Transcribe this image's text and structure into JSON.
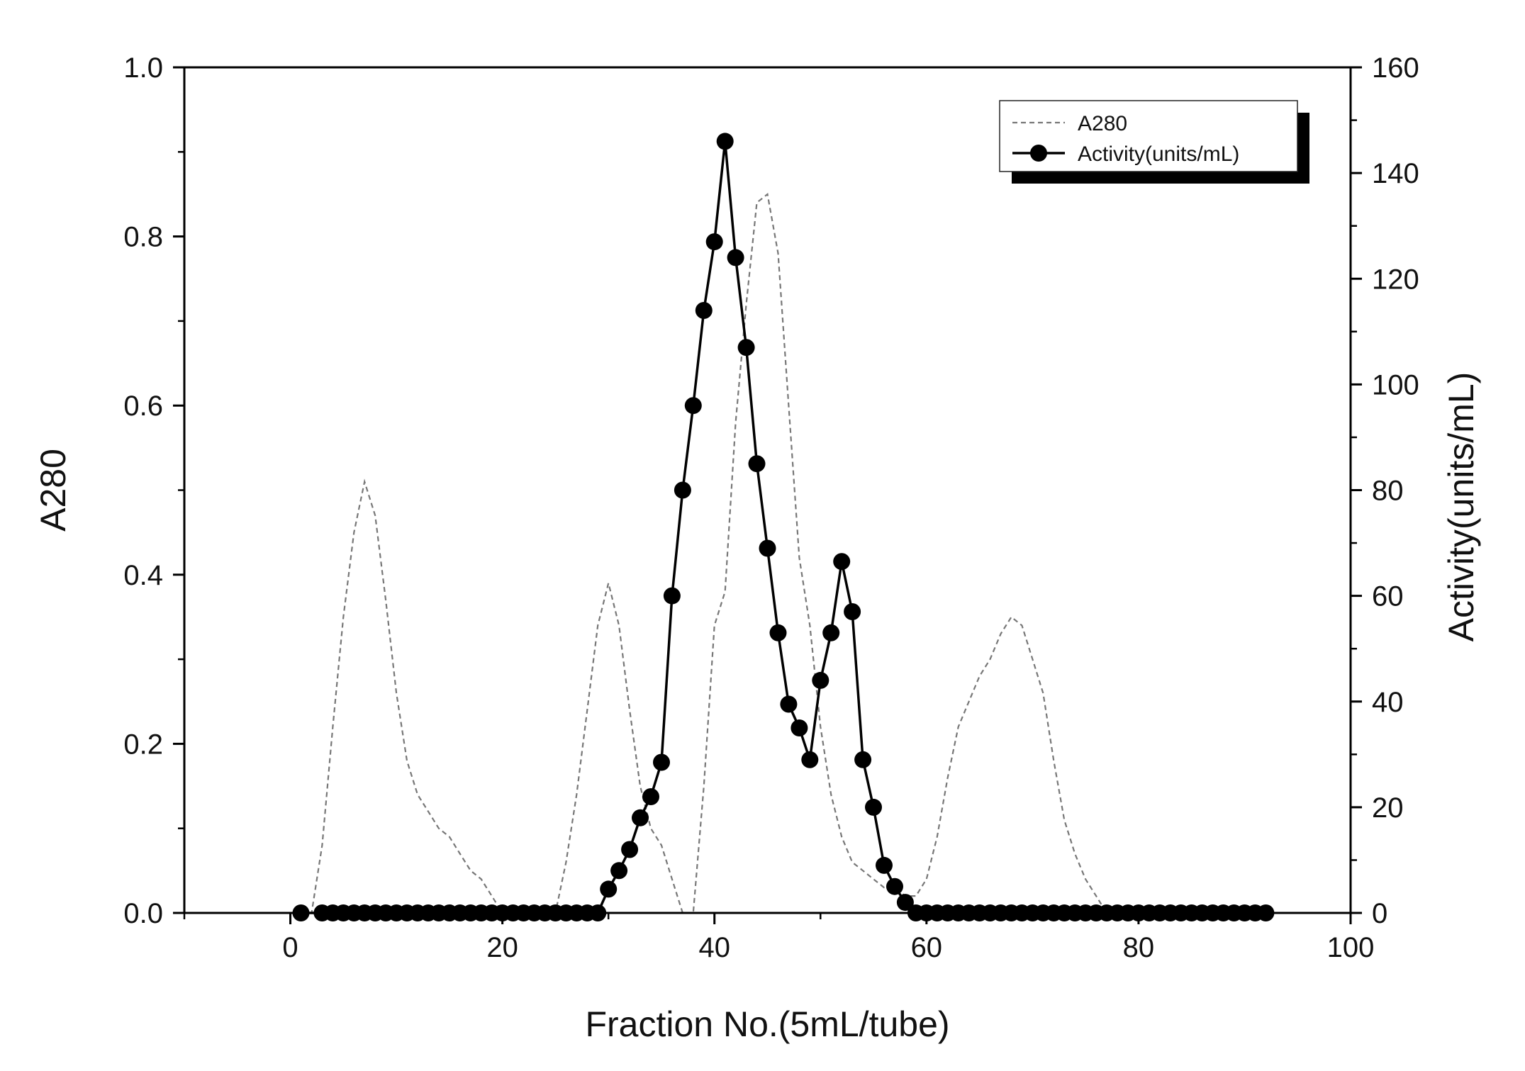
{
  "chart_data": {
    "type": "line",
    "title": "",
    "xlabel": "Fraction No.(5mL/tube)",
    "ylabel_left": "A280",
    "ylabel_right": "Activity(units/mL)",
    "xlim": [
      -10,
      100
    ],
    "ylim_left": [
      0,
      1.0
    ],
    "ylim_right": [
      0,
      160
    ],
    "x_ticks": [
      0,
      20,
      40,
      60,
      80,
      100
    ],
    "x_tick_labels": [
      "0",
      "20",
      "40",
      "60",
      "80",
      "100"
    ],
    "y_left_ticks": [
      0,
      0.2,
      0.4,
      0.6,
      0.8,
      1.0
    ],
    "y_left_tick_labels": [
      "0.0",
      "0.2",
      "0.4",
      "0.6",
      "0.8",
      "1.0"
    ],
    "y_right_ticks": [
      0,
      20,
      40,
      60,
      80,
      100,
      120,
      140,
      160
    ],
    "y_right_tick_labels": [
      "0",
      "20",
      "40",
      "60",
      "80",
      "100",
      "120",
      "140",
      "160"
    ],
    "grid": false,
    "legend_position": "top-right",
    "series": [
      {
        "name": "A280",
        "axis": "left",
        "style": "dashed",
        "color": "#777777",
        "x": [
          1,
          2,
          3,
          4,
          5,
          6,
          7,
          8,
          9,
          10,
          11,
          12,
          13,
          14,
          15,
          16,
          17,
          18,
          19,
          20,
          21,
          22,
          23,
          24,
          25,
          26,
          27,
          28,
          29,
          30,
          31,
          32,
          33,
          34,
          35,
          36,
          37,
          38,
          39,
          40,
          41,
          42,
          43,
          44,
          45,
          46,
          47,
          48,
          49,
          50,
          51,
          52,
          53,
          54,
          55,
          56,
          57,
          58,
          59,
          60,
          61,
          62,
          63,
          64,
          65,
          66,
          67,
          68,
          69,
          70,
          71,
          72,
          73,
          74,
          75,
          76,
          77,
          78,
          79,
          80,
          85,
          90,
          92
        ],
        "y": [
          0.0,
          0.0,
          0.08,
          0.22,
          0.35,
          0.45,
          0.51,
          0.47,
          0.37,
          0.26,
          0.18,
          0.14,
          0.12,
          0.1,
          0.09,
          0.07,
          0.05,
          0.04,
          0.02,
          0.0,
          0.0,
          0.0,
          0.0,
          0.0,
          0.0,
          0.06,
          0.14,
          0.24,
          0.34,
          0.39,
          0.34,
          0.24,
          0.15,
          0.1,
          0.08,
          0.04,
          0.0,
          0.0,
          0.15,
          0.34,
          0.38,
          0.58,
          0.72,
          0.84,
          0.85,
          0.78,
          0.6,
          0.42,
          0.34,
          0.22,
          0.14,
          0.09,
          0.06,
          0.05,
          0.04,
          0.03,
          0.03,
          0.02,
          0.02,
          0.04,
          0.09,
          0.16,
          0.22,
          0.25,
          0.28,
          0.3,
          0.33,
          0.35,
          0.34,
          0.3,
          0.26,
          0.18,
          0.11,
          0.07,
          0.04,
          0.02,
          0.0,
          0.0,
          0.0,
          0.0,
          0.0,
          0.0,
          0.0
        ]
      },
      {
        "name": "Activity(units/mL)",
        "axis": "right",
        "style": "solid-with-markers",
        "color": "#000000",
        "x": [
          1,
          3,
          4,
          5,
          6,
          7,
          8,
          9,
          10,
          11,
          12,
          13,
          14,
          15,
          16,
          17,
          18,
          19,
          20,
          21,
          22,
          23,
          24,
          25,
          26,
          27,
          28,
          29,
          30,
          31,
          32,
          33,
          34,
          35,
          36,
          37,
          38,
          39,
          40,
          41,
          42,
          43,
          44,
          45,
          46,
          47,
          48,
          49,
          50,
          51,
          52,
          53,
          54,
          55,
          56,
          57,
          58,
          59,
          60,
          61,
          62,
          63,
          64,
          65,
          66,
          67,
          68,
          69,
          70,
          71,
          72,
          73,
          74,
          75,
          76,
          77,
          78,
          79,
          80,
          81,
          82,
          83,
          84,
          85,
          86,
          87,
          88,
          89,
          90,
          91,
          92
        ],
        "y": [
          0,
          0,
          0,
          0,
          0,
          0,
          0,
          0,
          0,
          0,
          0,
          0,
          0,
          0,
          0,
          0,
          0,
          0,
          0,
          0,
          0,
          0,
          0,
          0,
          0,
          0,
          0,
          0,
          4.5,
          8,
          12,
          18,
          22,
          28.5,
          60,
          80,
          96,
          114,
          127,
          146,
          124,
          107,
          85,
          69,
          53,
          39.5,
          35,
          29,
          44,
          53,
          66.5,
          57,
          29,
          20,
          9,
          5,
          2,
          0,
          0,
          0,
          0,
          0,
          0,
          0,
          0,
          0,
          0,
          0,
          0,
          0,
          0,
          0,
          0,
          0,
          0,
          0,
          0,
          0,
          0,
          0,
          0,
          0,
          0,
          0,
          0,
          0,
          0,
          0,
          0,
          0,
          0
        ]
      }
    ]
  }
}
